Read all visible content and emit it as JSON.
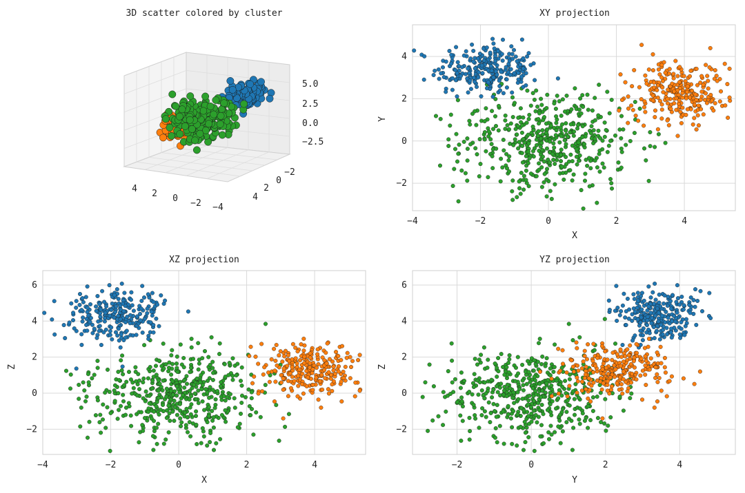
{
  "figure": {
    "background": "#ffffff"
  },
  "colors": {
    "cluster_blue": "#1f77b4",
    "cluster_orange": "#ff7f0e",
    "cluster_green": "#2ca02c",
    "grid": "#d9d9d9",
    "marker_edge": "#1a1a1a"
  },
  "chart_data": [
    {
      "type": "scatter",
      "projection": "3d",
      "title": "3D scatter colored by cluster",
      "z_ticks": [
        "5.0",
        "2.5",
        "0.0",
        "−2.5"
      ],
      "x_ticks": [
        "4",
        "2",
        "0",
        "−2",
        "−4"
      ],
      "y_ticks": [
        "−2",
        "0",
        "2",
        "4"
      ],
      "series": [
        {
          "color": "#1f77b4",
          "center": [
            -1.8,
            3.4,
            4.3
          ],
          "spread": [
            0.75,
            0.6,
            0.7
          ]
        },
        {
          "color": "#ff7f0e",
          "center": [
            3.8,
            2.3,
            1.3
          ],
          "spread": [
            0.7,
            0.75,
            0.7
          ]
        },
        {
          "color": "#2ca02c",
          "center": [
            0.0,
            0.0,
            0.0
          ],
          "spread": [
            1.3,
            1.2,
            1.2
          ]
        }
      ]
    },
    {
      "type": "scatter",
      "title": "XY projection",
      "xlabel": "X",
      "ylabel": "Y",
      "xlim": [
        -4,
        5.5
      ],
      "ylim": [
        -3.3,
        5.5
      ],
      "xticks": [
        -4,
        -2,
        0,
        2,
        4
      ],
      "yticks": [
        -2,
        0,
        2,
        4
      ],
      "series": [
        {
          "color": "#1f77b4",
          "dims": [
            "x",
            "y"
          ]
        },
        {
          "color": "#ff7f0e",
          "dims": [
            "x",
            "y"
          ]
        },
        {
          "color": "#2ca02c",
          "dims": [
            "x",
            "y"
          ]
        }
      ]
    },
    {
      "type": "scatter",
      "title": "XZ projection",
      "xlabel": "X",
      "ylabel": "Z",
      "xlim": [
        -4,
        5.5
      ],
      "ylim": [
        -3.4,
        6.8
      ],
      "xticks": [
        -4,
        -2,
        0,
        2,
        4
      ],
      "yticks": [
        -2,
        0,
        2,
        4,
        6
      ],
      "series": [
        {
          "color": "#1f77b4",
          "dims": [
            "x",
            "z"
          ]
        },
        {
          "color": "#ff7f0e",
          "dims": [
            "x",
            "z"
          ]
        },
        {
          "color": "#2ca02c",
          "dims": [
            "x",
            "z"
          ]
        }
      ]
    },
    {
      "type": "scatter",
      "title": "YZ projection",
      "xlabel": "Y",
      "ylabel": "Z",
      "xlim": [
        -3.2,
        5.5
      ],
      "ylim": [
        -3.4,
        6.8
      ],
      "xticks": [
        -2,
        0,
        2,
        4
      ],
      "yticks": [
        -2,
        0,
        2,
        4,
        6
      ],
      "series": [
        {
          "color": "#1f77b4",
          "dims": [
            "y",
            "z"
          ]
        },
        {
          "color": "#ff7f0e",
          "dims": [
            "y",
            "z"
          ]
        },
        {
          "color": "#2ca02c",
          "dims": [
            "y",
            "z"
          ]
        }
      ]
    }
  ],
  "clusters": [
    {
      "color": "#1f77b4",
      "n": 260,
      "mean": [
        -1.8,
        3.4,
        4.3
      ],
      "sd": [
        0.75,
        0.6,
        0.7
      ]
    },
    {
      "color": "#ff7f0e",
      "n": 260,
      "mean": [
        3.8,
        2.3,
        1.3
      ],
      "sd": [
        0.7,
        0.75,
        0.7
      ]
    },
    {
      "color": "#2ca02c",
      "n": 500,
      "mean": [
        0.0,
        0.0,
        0.0
      ],
      "sd": [
        1.3,
        1.2,
        1.2
      ]
    }
  ]
}
